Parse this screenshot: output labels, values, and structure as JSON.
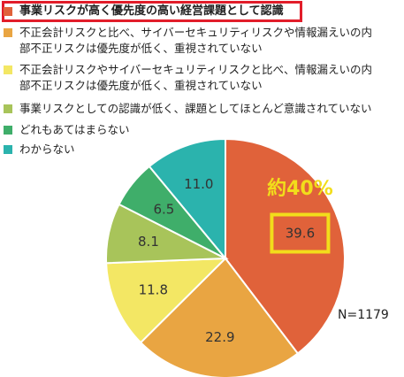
{
  "chart_data": {
    "type": "pie",
    "title": "",
    "categories": [
      "事業リスクが高く優先度の高い経営課題として認識",
      "不正会計リスクと比べ、サイバーセキュリティリスクや情報漏えいの内部不正リスクは優先度が低く、重視されていない",
      "不正会計リスクやサイバーセキュリティリスクと比べ、情報漏えいの内部不正リスクは優先度が低く、重視されていない",
      "事業リスクとしての認識が低く、課題としてほとんど意識されていない",
      "どれもあてはまらない",
      "わからない"
    ],
    "values": [
      39.6,
      22.9,
      11.8,
      8.1,
      6.5,
      11.0
    ],
    "value_labels": [
      "39.6",
      "22.9",
      "11.8",
      "8.1",
      "6.5",
      "11.0"
    ],
    "colors": [
      "#e0623a",
      "#e9a542",
      "#f3e764",
      "#a8c45a",
      "#3fae6a",
      "#2bb3ad"
    ],
    "legend_position": "top-left",
    "annotation": "約40%",
    "annotation_color": "#f2dd1b",
    "highlight_color": "#e21d2a",
    "sample_size": "N=1179"
  },
  "legend": {
    "items": [
      {
        "line1": "事業リスクが高く優先度の高い経営課題として認識",
        "line2": ""
      },
      {
        "line1": "不正会計リスクと比べ、サイバーセキュリティリスクや情報漏えいの内",
        "line2": "部不正リスクは優先度が低く、重視されていない"
      },
      {
        "line1": "不正会計リスクやサイバーセキュリティリスクと比べ、情報漏えいの内",
        "line2": "部不正リスクは優先度が低く、重視されていない"
      },
      {
        "line1": "事業リスクとしての認識が低く、課題としてほとんど意識されていない",
        "line2": ""
      },
      {
        "line1": "どれもあてはまらない",
        "line2": ""
      },
      {
        "line1": "わからない",
        "line2": ""
      }
    ]
  }
}
